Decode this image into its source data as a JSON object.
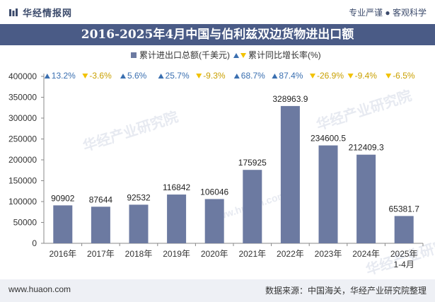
{
  "header": {
    "brand": "华经情报网",
    "tagline": "专业严谨 ● 客观科学",
    "title": "2016-2025年4月中国与伯利兹双边货物进出口额"
  },
  "footer": {
    "url": "www.huaon.com",
    "source": "数据来源：中国海关，华经产业研究院整理"
  },
  "watermarks": [
    "华经产业研究院",
    "www.huaon.com"
  ],
  "colors": {
    "bar": "#6c7aa1",
    "titlebar": "#4a5b86",
    "up": "#3a6fb0",
    "down": "#f2c200",
    "axis": "#888888",
    "footer_bg": "#eef0f5"
  },
  "chart_data": {
    "type": "bar",
    "categories": [
      "2016年",
      "2017年",
      "2018年",
      "2019年",
      "2020年",
      "2021年",
      "2022年",
      "2023年",
      "2024年",
      "2025年\n1-4月"
    ],
    "series": [
      {
        "name": "累计进出口总额(千美元)",
        "values": [
          90902,
          87644,
          92532,
          116842,
          106046,
          175925,
          328963.9,
          234600.5,
          212409.3,
          65381.7
        ]
      },
      {
        "name": "累计同比增长率(%)",
        "values": [
          13.2,
          -3.6,
          5.6,
          25.7,
          -9.3,
          68.7,
          87.4,
          -26.9,
          -9.4,
          -6.5
        ]
      }
    ],
    "value_labels": [
      "90902",
      "87644",
      "92532",
      "116842",
      "106046",
      "175925",
      "328963.9",
      "234600.5",
      "212409.3",
      "65381.7"
    ],
    "growth_labels": [
      "13.2%",
      "-3.6%",
      "5.6%",
      "25.7%",
      "-9.3%",
      "68.7%",
      "87.4%",
      "-26.9%",
      "-9.4%",
      "-6.5%"
    ],
    "yticks": [
      0,
      50000,
      100000,
      150000,
      200000,
      250000,
      300000,
      350000,
      400000
    ],
    "ylim": [
      0,
      400000
    ],
    "legend_position": "top",
    "grid": false
  }
}
